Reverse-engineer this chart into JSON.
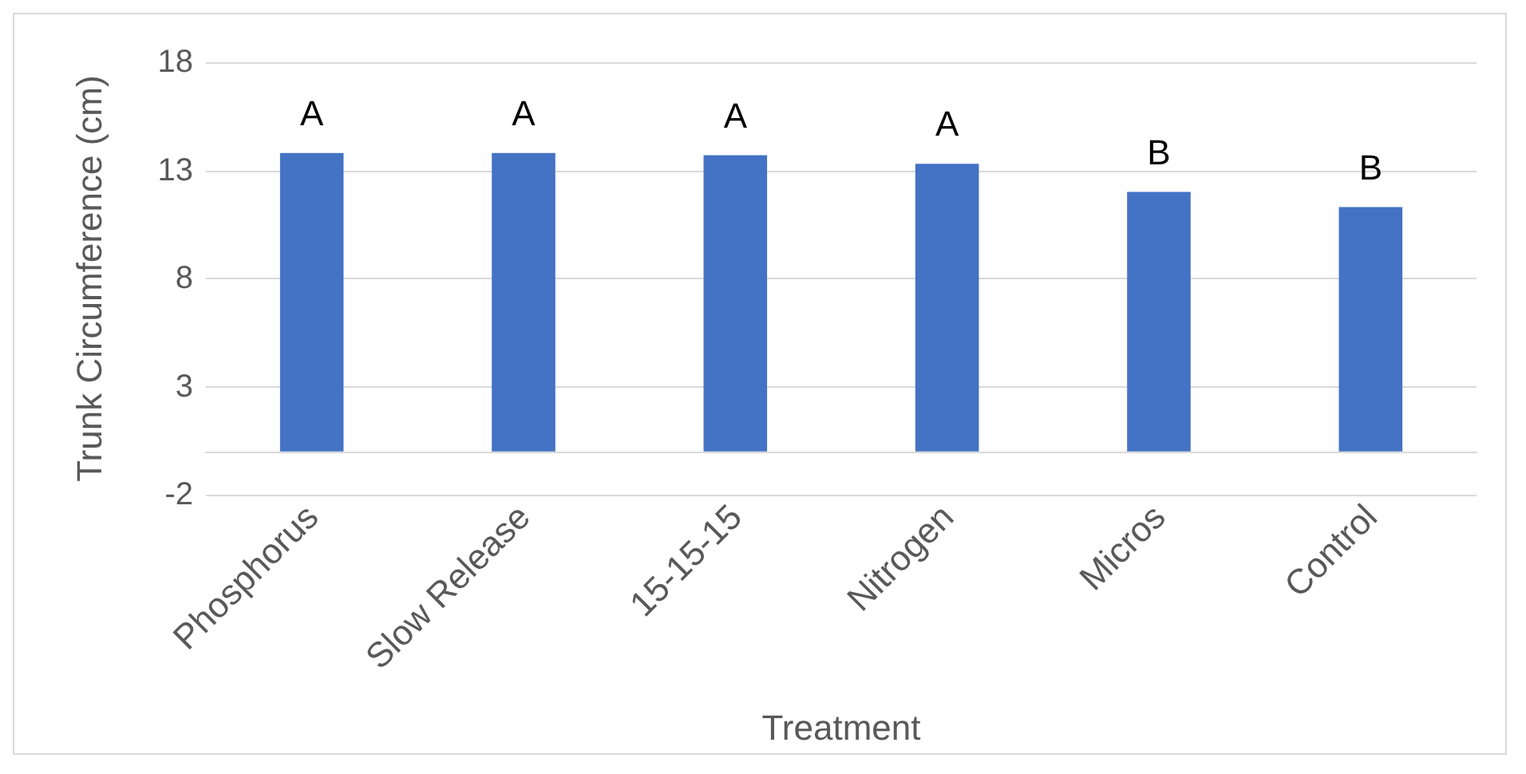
{
  "chart_data": {
    "type": "bar",
    "xlabel": "Treatment",
    "ylabel": "Trunk Circumference (cm)",
    "categories": [
      "Phosphorus",
      "Slow Release",
      "15-15-15",
      "Nitrogen",
      "Micros",
      "Control"
    ],
    "values": [
      13.8,
      13.8,
      13.7,
      13.3,
      12.0,
      11.3
    ],
    "color": "#4472c4",
    "ylim": [
      -2,
      18
    ],
    "yticks": [
      -2,
      3,
      8,
      13,
      18
    ],
    "grid": "y",
    "annotations": [
      {
        "text": "A",
        "x": "Phosphorus",
        "y": 13.8
      },
      {
        "text": "A",
        "x": "Slow Release",
        "y": 13.8
      },
      {
        "text": "A",
        "x": "15-15-15",
        "y": 13.7
      },
      {
        "text": "A",
        "x": "Nitrogen",
        "y": 13.3
      },
      {
        "text": "B",
        "x": "Micros",
        "y": 12.0
      },
      {
        "text": "B",
        "x": "Control",
        "y": 11.3
      }
    ]
  }
}
